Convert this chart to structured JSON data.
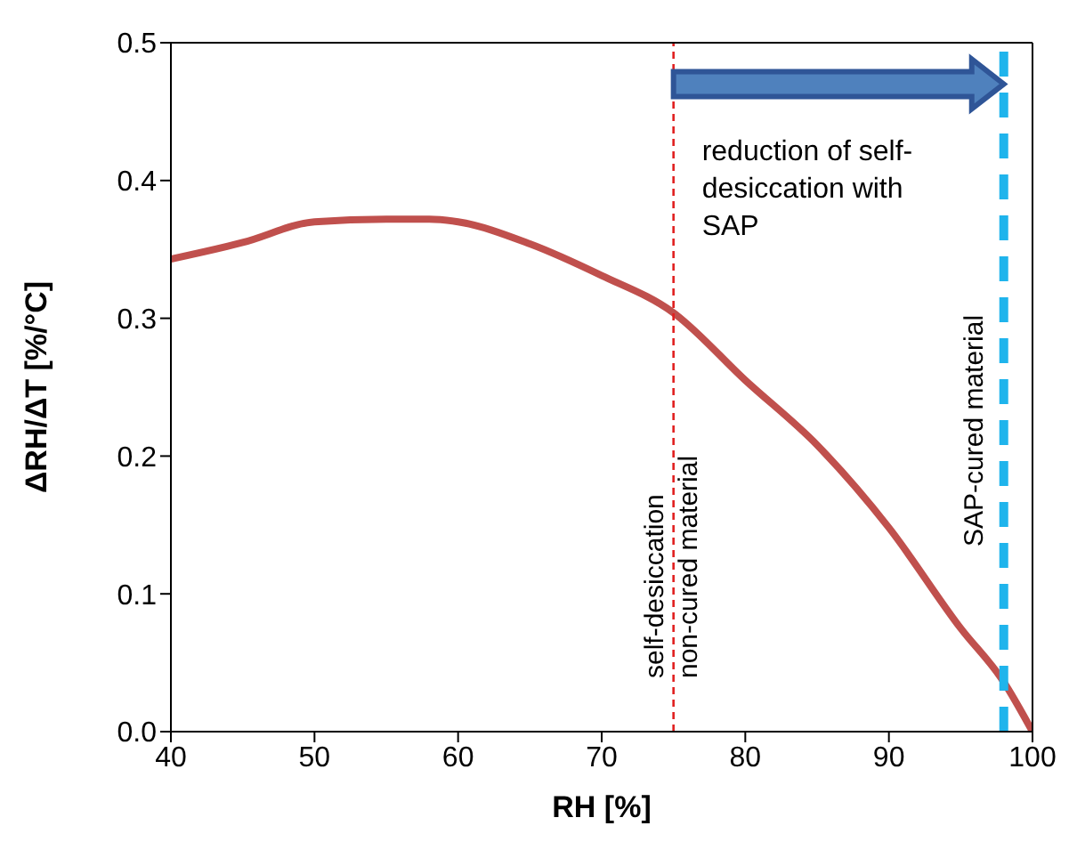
{
  "chart_data": {
    "type": "line",
    "xlabel": "RH [%]",
    "ylabel": "ΔRH/ΔT [%/°C]",
    "x": [
      40,
      45,
      50,
      55,
      58,
      60,
      65,
      70,
      75,
      80,
      85,
      90,
      95,
      98,
      100
    ],
    "series": [
      {
        "color": "#c0504d",
        "values": [
          0.343,
          0.355,
          0.37,
          0.372,
          0.372,
          0.37,
          0.354,
          0.331,
          0.304,
          0.255,
          0.208,
          0.148,
          0.075,
          0.036,
          0
        ]
      }
    ],
    "xlim": [
      40,
      100
    ],
    "xticks": [
      40,
      50,
      60,
      70,
      80,
      90,
      100
    ],
    "ylim": [
      0,
      0.5
    ],
    "yticks": [
      {
        "value": 0,
        "label": "0.0"
      },
      {
        "value": 0.1,
        "label": "0.1"
      },
      {
        "value": 0.2,
        "label": "0.2"
      },
      {
        "value": 0.3,
        "label": "0.3"
      },
      {
        "value": 0.4,
        "label": "0.4"
      },
      {
        "value": 0.5,
        "label": "0.5"
      }
    ],
    "ref_lines": [
      {
        "axis": "x",
        "value": 75,
        "label": "self-desiccation\nnon-cured material",
        "color": "#e02020",
        "line_style": "dashed"
      },
      {
        "axis": "x",
        "value": 98,
        "label": "SAP-cured material",
        "color": "#1fb4ec",
        "line_style": "dashed"
      }
    ],
    "annotations": [
      "reduction of self-desiccation with SAP"
    ],
    "marker": "none",
    "line_style": "solid"
  }
}
